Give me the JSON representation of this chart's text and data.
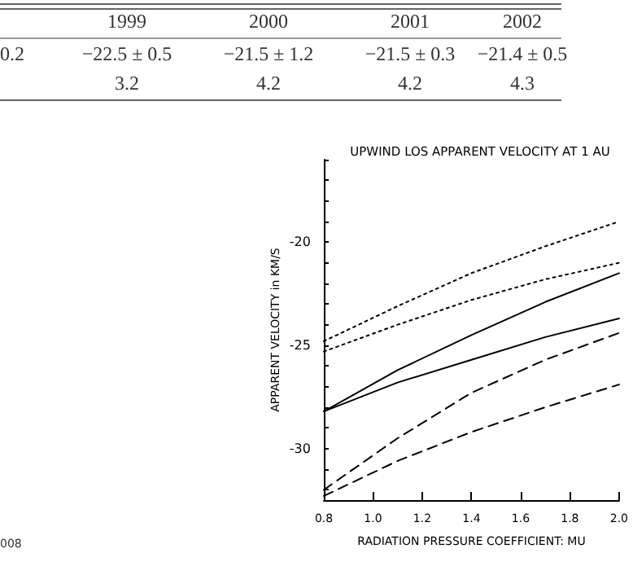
{
  "chart_data": {
    "type": "line",
    "title": "UPWIND LOS APPARENT VELOCITY AT 1 AU",
    "xlabel": "RADIATION PRESSURE COEFFICIENT: MU",
    "ylabel": "APPARENT VELOCITY in KM/S",
    "x": [
      0.8,
      1.1,
      1.4,
      1.7,
      2.0
    ],
    "series": [
      {
        "color": "#000000",
        "line_style": "dotted",
        "values": [
          -24.8,
          -23.1,
          -21.5,
          -20.2,
          -19.0
        ]
      },
      {
        "color": "#000000",
        "line_style": "dotted",
        "values": [
          -25.3,
          -24.0,
          -22.8,
          -21.8,
          -21.0
        ]
      },
      {
        "color": "#000000",
        "line_style": "solid",
        "values": [
          -28.2,
          -26.2,
          -24.5,
          -22.9,
          -21.5
        ]
      },
      {
        "color": "#000000",
        "line_style": "solid",
        "values": [
          -28.2,
          -26.8,
          -25.7,
          -24.6,
          -23.7
        ]
      },
      {
        "color": "#000000",
        "line_style": "dashed",
        "values": [
          -32.0,
          -29.5,
          -27.3,
          -25.7,
          -24.4
        ]
      },
      {
        "color": "#000000",
        "line_style": "dashed",
        "values": [
          -32.3,
          -30.6,
          -29.2,
          -28.0,
          -26.9
        ]
      }
    ],
    "xlim": [
      0.8,
      2.0
    ],
    "xticks": [
      0.8,
      {
        "value": 1.0,
        "label": "1.0"
      },
      1.2,
      1.4,
      1.6,
      1.8,
      {
        "value": 2.0,
        "label": "2.0"
      }
    ],
    "ylim": [
      -32.5,
      -16
    ],
    "yticks": [
      -30,
      -25,
      -20
    ],
    "grid": false,
    "marker": "none",
    "annotations": [
      "1999",
      "2000",
      "2001",
      "2002",
      "0.2",
      "−22.5 ± 0.5",
      "−21.5 ± 1.2",
      "−21.5 ± 0.3",
      "−21.4 ± 0.5",
      "3.2",
      "4.2",
      "4.2",
      "4.3",
      "008"
    ]
  }
}
